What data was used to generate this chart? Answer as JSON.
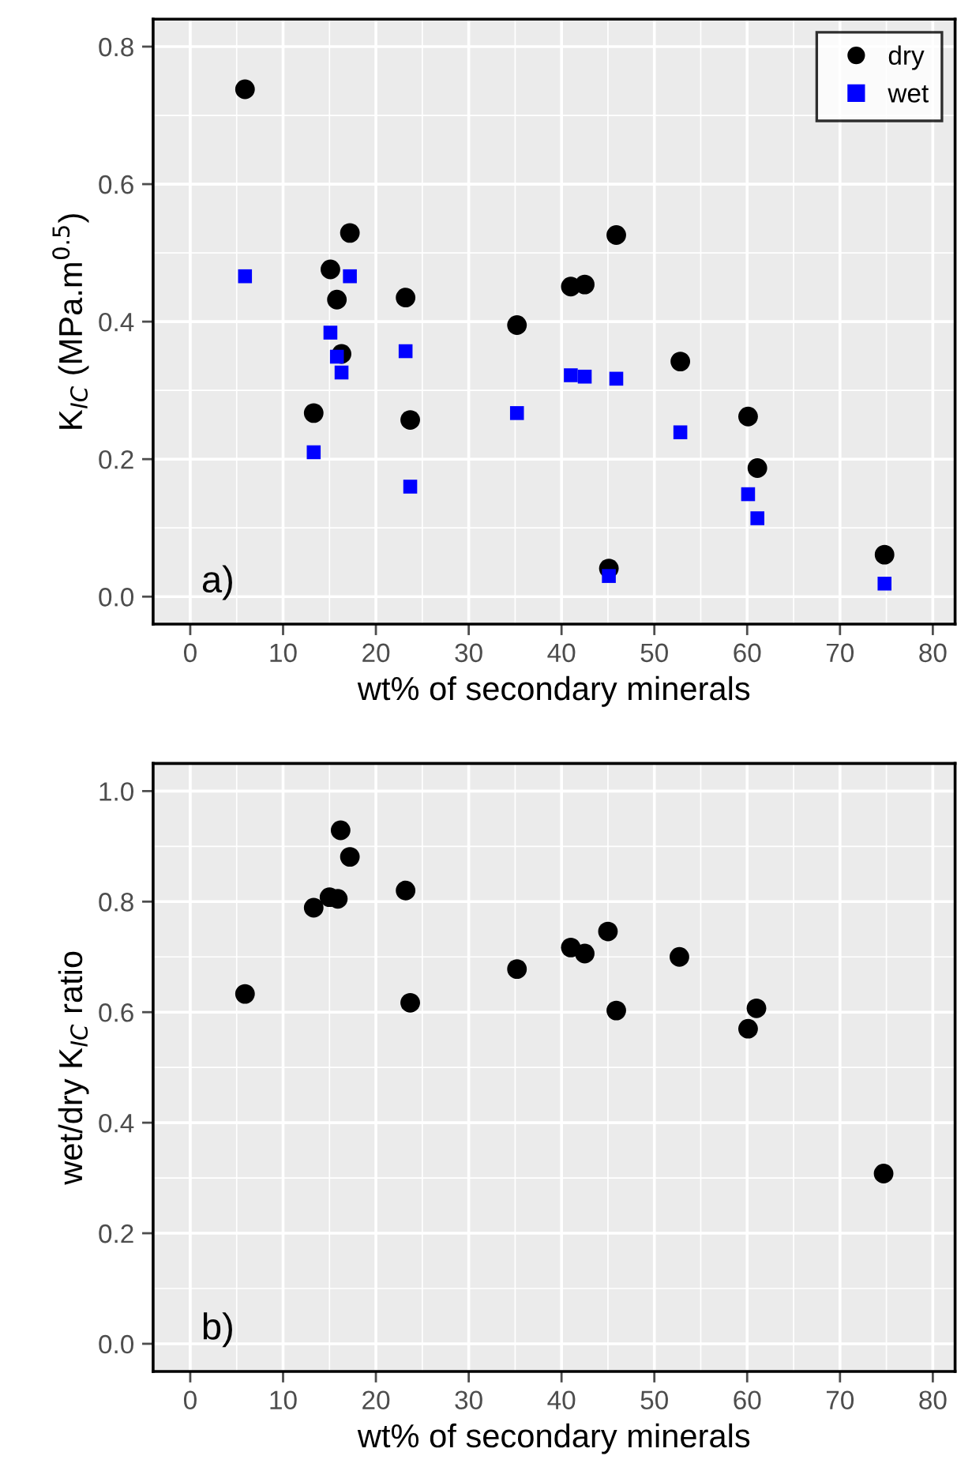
{
  "chart_data": [
    {
      "type": "scatter",
      "xlabel": "wt% of secondary minerals",
      "ylabel": "K$_{IC}$ (MPa.m$^{0.5}$)",
      "annotations": [
        "a)"
      ],
      "xlim": [
        -4,
        82.4
      ],
      "xticks": [
        0,
        10,
        20,
        30,
        40,
        50,
        60,
        70,
        80
      ],
      "ylim": [
        -0.04,
        0.84
      ],
      "yticks": [
        {
          "value": 0,
          "label": "0.0"
        },
        {
          "value": 0.2,
          "label": "0.2"
        },
        {
          "value": 0.4,
          "label": "0.4"
        },
        {
          "value": 0.6,
          "label": "0.6"
        },
        {
          "value": 0.8,
          "label": "0.8"
        }
      ],
      "grid": true,
      "legend": "top right",
      "series": [
        {
          "name": "dry",
          "color": "#000000",
          "marker": "circle",
          "x": [
            5.9,
            13.3,
            15.1,
            15.8,
            16.3,
            17.2,
            23.2,
            23.7,
            35.2,
            41.0,
            42.5,
            45.1,
            45.9,
            52.8,
            60.1,
            61.1,
            74.8
          ],
          "values": [
            0.738,
            0.267,
            0.476,
            0.432,
            0.353,
            0.529,
            0.435,
            0.257,
            0.395,
            0.451,
            0.454,
            0.041,
            0.526,
            0.342,
            0.262,
            0.187,
            0.061
          ]
        },
        {
          "name": "wet",
          "color": "#0000ff",
          "marker": "square",
          "x": [
            5.9,
            13.3,
            15.1,
            15.8,
            16.3,
            17.2,
            23.2,
            23.7,
            35.2,
            41.0,
            42.5,
            45.1,
            45.9,
            52.8,
            60.1,
            61.1,
            74.8
          ],
          "values": [
            0.466,
            0.21,
            0.384,
            0.349,
            0.326,
            0.466,
            0.357,
            0.16,
            0.267,
            0.322,
            0.32,
            0.03,
            0.317,
            0.239,
            0.149,
            0.114,
            0.019
          ]
        }
      ]
    },
    {
      "type": "scatter",
      "xlabel": "wt% of secondary minerals",
      "ylabel": "wet/dry K$_{IC}$ ratio",
      "annotations": [
        "b)"
      ],
      "xlim": [
        -4,
        82.4
      ],
      "xticks": [
        0,
        10,
        20,
        30,
        40,
        50,
        60,
        70,
        80
      ],
      "ylim": [
        -0.05,
        1.05
      ],
      "yticks": [
        {
          "value": 0,
          "label": "0.0"
        },
        {
          "value": 0.2,
          "label": "0.2"
        },
        {
          "value": 0.4,
          "label": "0.4"
        },
        {
          "value": 0.6,
          "label": "0.6"
        },
        {
          "value": 0.8,
          "label": "0.8"
        },
        {
          "value": 1,
          "label": "1.0"
        }
      ],
      "grid": true,
      "series": [
        {
          "color": "#000000",
          "marker": "circle",
          "x": [
            5.9,
            13.3,
            15.0,
            15.9,
            16.2,
            17.2,
            23.2,
            23.7,
            35.2,
            41.0,
            42.5,
            45.0,
            45.9,
            52.7,
            60.1,
            61.0,
            74.7
          ],
          "values": [
            0.633,
            0.789,
            0.808,
            0.805,
            0.929,
            0.881,
            0.82,
            0.617,
            0.678,
            0.717,
            0.706,
            0.746,
            0.603,
            0.7,
            0.57,
            0.607,
            0.308
          ]
        }
      ]
    }
  ]
}
